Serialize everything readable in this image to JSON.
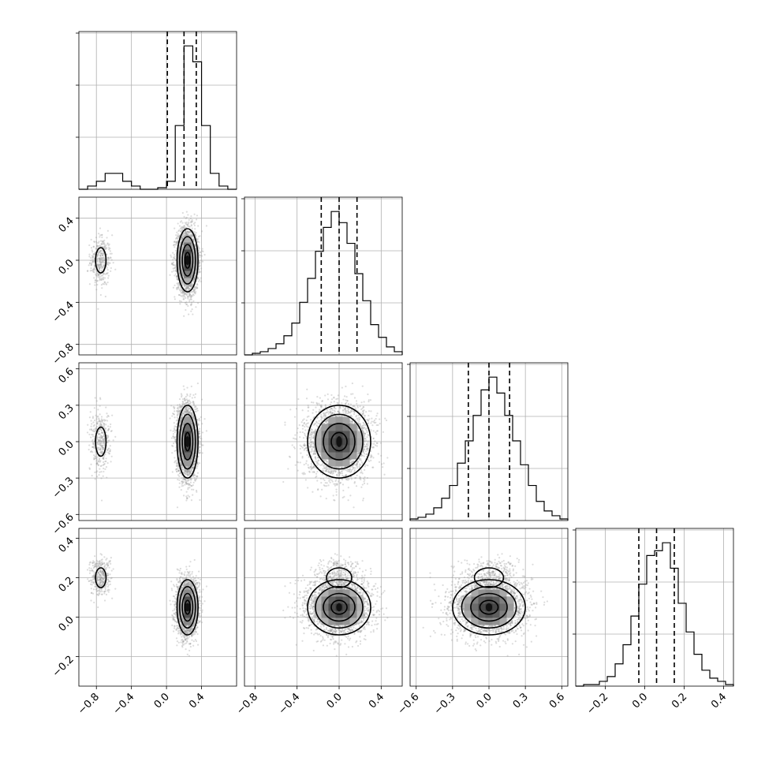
{
  "chart_data": {
    "type": "corner",
    "n_params": 4,
    "grid": true,
    "params": [
      {
        "range": [
          -1.0,
          0.8
        ],
        "ticks": [
          -0.8,
          -0.4,
          0.0,
          0.4
        ],
        "tick_labels": [
          "−0.8",
          "−0.4",
          "0.0",
          "0.4"
        ],
        "hist": {
          "bins": [
            -1.0,
            -0.9,
            -0.8,
            -0.7,
            -0.6,
            -0.5,
            -0.4,
            -0.3,
            -0.2,
            -0.1,
            0.0,
            0.1,
            0.2,
            0.3,
            0.4,
            0.5,
            0.6,
            0.7,
            0.8
          ],
          "counts": [
            0,
            2,
            5,
            10,
            10,
            5,
            2,
            0,
            0,
            1,
            5,
            40,
            90,
            80,
            40,
            10,
            2,
            0
          ]
        },
        "quantiles": [
          0.01,
          0.2,
          0.34
        ]
      },
      {
        "range": [
          -0.9,
          0.6
        ],
        "ticks": [
          -0.8,
          -0.4,
          0.0,
          0.4
        ],
        "tick_labels": [
          "−0.8",
          "−0.4",
          "0.0",
          "0.4"
        ],
        "hist": {
          "bins": [
            -0.9,
            -0.825,
            -0.75,
            -0.675,
            -0.6,
            -0.525,
            -0.45,
            -0.375,
            -0.3,
            -0.225,
            -0.15,
            -0.075,
            0.0,
            0.075,
            0.15,
            0.225,
            0.3,
            0.375,
            0.45,
            0.525,
            0.6
          ],
          "counts": [
            0,
            1,
            2,
            4,
            7,
            12,
            20,
            33,
            48,
            65,
            80,
            90,
            83,
            70,
            51,
            34,
            19,
            11,
            5,
            2
          ]
        },
        "quantiles": [
          -0.17,
          0.0,
          0.17
        ]
      },
      {
        "range": [
          -0.65,
          0.65
        ],
        "ticks": [
          -0.6,
          -0.3,
          0.0,
          0.3,
          0.6
        ],
        "tick_labels": [
          "−0.6",
          "−0.3",
          "0.0",
          "0.3",
          "0.6"
        ],
        "hist": {
          "bins": [
            -0.65,
            -0.585,
            -0.52,
            -0.455,
            -0.39,
            -0.325,
            -0.26,
            -0.195,
            -0.13,
            -0.065,
            0.0,
            0.065,
            0.13,
            0.195,
            0.26,
            0.325,
            0.39,
            0.455,
            0.52,
            0.585,
            0.65
          ],
          "counts": [
            1,
            2,
            4,
            8,
            14,
            22,
            36,
            50,
            66,
            82,
            90,
            80,
            66,
            50,
            35,
            22,
            12,
            6,
            3,
            1
          ]
        },
        "quantiles": [
          -0.17,
          0.0,
          0.17
        ]
      },
      {
        "range": [
          -0.35,
          0.45
        ],
        "ticks": [
          -0.2,
          0.0,
          0.2,
          0.4
        ],
        "tick_labels": [
          "−0.2",
          "0.0",
          "0.2",
          "0.4"
        ],
        "hist": {
          "bins": [
            -0.35,
            -0.31,
            -0.27,
            -0.23,
            -0.19,
            -0.15,
            -0.11,
            -0.07,
            -0.03,
            0.01,
            0.05,
            0.09,
            0.13,
            0.17,
            0.21,
            0.25,
            0.29,
            0.33,
            0.37,
            0.41,
            0.45
          ],
          "counts": [
            0,
            1,
            1,
            3,
            6,
            14,
            26,
            44,
            64,
            82,
            85,
            90,
            74,
            52,
            34,
            20,
            10,
            5,
            3,
            1
          ]
        },
        "quantiles": [
          -0.03,
          0.06,
          0.15
        ]
      }
    ],
    "clusters": [
      {
        "weight": 0.12,
        "mean": [
          -0.75,
          0.0,
          0.0,
          0.2
        ],
        "sd": [
          0.06,
          0.12,
          0.12,
          0.05
        ]
      },
      {
        "weight": 0.88,
        "mean": [
          0.24,
          0.0,
          0.0,
          0.05
        ],
        "sd": [
          0.06,
          0.15,
          0.15,
          0.07
        ]
      }
    ]
  }
}
